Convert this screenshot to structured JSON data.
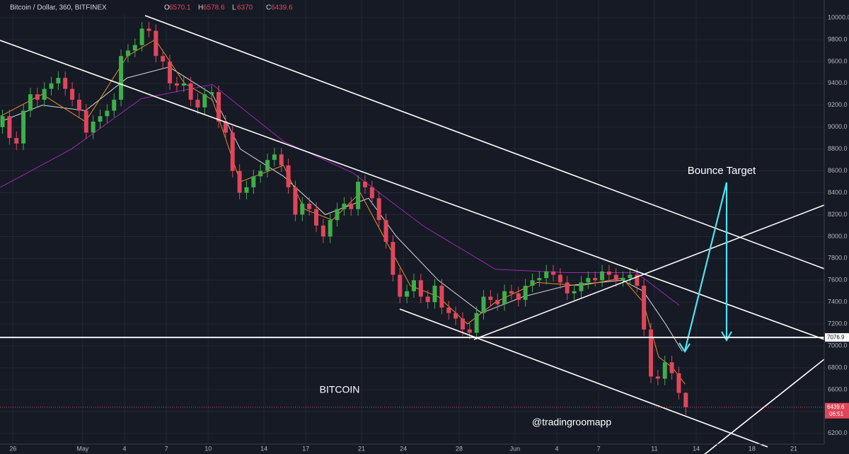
{
  "chart_data": {
    "type": "candlestick",
    "title": "Bitcoin / Dollar, 360, BITFINEX",
    "ohlc_legend": [
      {
        "label": "O",
        "value": 6570.1
      },
      {
        "label": "H",
        "value": 6578.6
      },
      {
        "label": "L",
        "value": 6370.0
      },
      {
        "label": "C",
        "value": 6439.6
      }
    ],
    "up_color": "#3fae4a",
    "down_color": "#e0465a",
    "x": [
      -0.75,
      -0.25,
      0.25,
      0.75,
      1.25,
      1.75,
      2.25,
      2.75,
      3.25,
      3.75,
      4.25,
      4.75,
      5.25,
      5.75,
      6.25,
      6.75,
      7.25,
      7.75,
      8.25,
      8.75,
      9.25,
      9.75,
      10.25,
      10.75,
      11.25,
      11.75,
      12.25,
      12.75,
      13.25,
      13.75,
      14.25,
      14.75,
      15.25,
      15.75,
      16.25,
      16.75,
      17.25,
      17.75,
      18.25,
      18.75,
      19.25,
      19.75,
      20.25,
      20.75,
      21.25,
      21.75,
      22.25,
      22.75,
      23.25,
      23.75,
      24.25,
      24.75,
      25.25,
      25.75,
      26.25,
      26.75,
      27.25,
      27.75,
      28.25,
      28.75,
      29.25,
      29.75,
      30.25,
      30.75,
      31.25,
      31.75,
      32.25,
      32.75,
      33.25,
      33.75,
      34.25,
      34.75,
      35.25,
      35.75,
      36.25,
      36.75,
      37.25,
      37.75,
      38.25,
      38.75,
      39.25,
      39.75,
      40.25,
      40.75,
      41.25,
      41.75,
      42.25,
      42.75,
      43.25,
      43.75,
      44.25,
      44.75,
      45.25,
      45.75,
      46.25,
      46.75,
      47.25,
      47.75,
      48.25
    ],
    "open": [
      9000,
      9100,
      8900,
      8850,
      9150,
      9300,
      9250,
      9350,
      9400,
      9450,
      9350,
      9250,
      9150,
      8950,
      9050,
      9100,
      9150,
      9250,
      9650,
      9700,
      9750,
      9900,
      9880,
      9650,
      9600,
      9400,
      9380,
      9400,
      9250,
      9180,
      9300,
      9320,
      9050,
      8950,
      8600,
      8400,
      8450,
      8550,
      8600,
      8700,
      8750,
      8650,
      8450,
      8200,
      8300,
      8250,
      8100,
      8000,
      8150,
      8250,
      8300,
      8250,
      8500,
      8450,
      8350,
      8150,
      7950,
      7650,
      7450,
      7500,
      7600,
      7450,
      7400,
      7550,
      7350,
      7300,
      7250,
      7150,
      7120,
      7300,
      7450,
      7420,
      7380,
      7500,
      7480,
      7420,
      7550,
      7600,
      7620,
      7680,
      7650,
      7580,
      7480,
      7500,
      7580,
      7620,
      7600,
      7680,
      7650,
      7600,
      7620,
      7650,
      7550,
      7150,
      6720,
      6700,
      6850,
      6750,
      6570.1
    ],
    "high": [
      9160,
      9160,
      8960,
      9210,
      9360,
      9360,
      9410,
      9460,
      9510,
      9510,
      9410,
      9310,
      9210,
      9110,
      9160,
      9210,
      9310,
      9710,
      9760,
      9810,
      9960,
      9960,
      9940,
      9710,
      9660,
      9460,
      9460,
      9460,
      9310,
      9360,
      9380,
      9380,
      9110,
      9010,
      8660,
      8510,
      8610,
      8660,
      8760,
      8810,
      8810,
      8710,
      8510,
      8360,
      8360,
      8310,
      8160,
      8210,
      8310,
      8360,
      8360,
      8560,
      8560,
      8510,
      8410,
      8210,
      8010,
      7710,
      7560,
      7660,
      7660,
      7510,
      7610,
      7610,
      7410,
      7360,
      7310,
      7210,
      7360,
      7510,
      7510,
      7480,
      7560,
      7560,
      7540,
      7610,
      7660,
      7680,
      7740,
      7740,
      7710,
      7640,
      7560,
      7640,
      7680,
      7680,
      7740,
      7740,
      7710,
      7680,
      7710,
      7710,
      7610,
      7210,
      6780,
      6910,
      6910,
      6810,
      6578.6
    ],
    "low": [
      8940,
      8840,
      8790,
      8790,
      9090,
      9190,
      9190,
      9290,
      9340,
      9290,
      9190,
      9090,
      8890,
      8890,
      8990,
      9040,
      9090,
      9190,
      9590,
      9640,
      9690,
      9820,
      9590,
      9540,
      9340,
      9320,
      9320,
      9190,
      9120,
      9120,
      9240,
      8990,
      8890,
      8540,
      8340,
      8340,
      8390,
      8490,
      8540,
      8640,
      8590,
      8390,
      8140,
      8140,
      8190,
      8040,
      7940,
      7940,
      8090,
      8190,
      8190,
      8190,
      8390,
      8290,
      8090,
      7890,
      7590,
      7390,
      7390,
      7440,
      7390,
      7340,
      7340,
      7290,
      7240,
      7190,
      7090,
      7060,
      7060,
      7240,
      7360,
      7320,
      7320,
      7420,
      7360,
      7360,
      7490,
      7540,
      7560,
      7590,
      7520,
      7420,
      7420,
      7440,
      7520,
      7540,
      7540,
      7590,
      7540,
      7540,
      7560,
      7490,
      7090,
      6660,
      6640,
      6640,
      6690,
      6510,
      6370
    ],
    "close": [
      9100,
      8900,
      8850,
      9150,
      9300,
      9250,
      9350,
      9400,
      9450,
      9350,
      9250,
      9150,
      8950,
      9050,
      9100,
      9150,
      9250,
      9650,
      9700,
      9750,
      9900,
      9880,
      9650,
      9600,
      9400,
      9380,
      9400,
      9250,
      9180,
      9300,
      9320,
      9050,
      8950,
      8600,
      8400,
      8450,
      8550,
      8600,
      8700,
      8750,
      8650,
      8450,
      8200,
      8300,
      8250,
      8100,
      8000,
      8150,
      8250,
      8300,
      8250,
      8500,
      8450,
      8350,
      8150,
      7950,
      7650,
      7450,
      7500,
      7600,
      7450,
      7400,
      7550,
      7350,
      7300,
      7250,
      7150,
      7120,
      7300,
      7450,
      7420,
      7380,
      7500,
      7480,
      7420,
      7550,
      7600,
      7620,
      7680,
      7650,
      7580,
      7480,
      7500,
      7580,
      7620,
      7600,
      7680,
      7650,
      7600,
      7620,
      7650,
      7550,
      7150,
      6720,
      6700,
      6850,
      6750,
      6570.1,
      6439.6
    ],
    "indicators": [
      {
        "color": "#9c27b0",
        "x": [
          -0.9,
          4.2,
          9.2,
          14.3,
          19.4,
          24.4,
          29.5,
          34.6,
          39.7,
          44.7,
          47.8
        ],
        "values": [
          8450,
          8800,
          9260,
          9390,
          8870,
          8580,
          8090,
          7700,
          7670,
          7670,
          7370
        ]
      },
      {
        "color": "#d8d8d8",
        "x": [
          -0.9,
          2.1,
          5.2,
          8.2,
          11.2,
          14.3,
          16.3,
          19.4,
          22.4,
          25.5,
          27.5,
          30.5,
          33.6,
          36.6,
          39.7,
          43.7,
          45.2,
          46.8,
          48.0
        ],
        "values": [
          9050,
          9200,
          9150,
          9450,
          9550,
          9300,
          8800,
          8550,
          8200,
          8350,
          8000,
          7600,
          7300,
          7450,
          7550,
          7600,
          7500,
          7200,
          6950
        ]
      },
      {
        "color": "#e8902a",
        "x": [
          -0.9,
          2.1,
          5.2,
          8.2,
          10.2,
          12.3,
          14.3,
          16.3,
          19.4,
          20.9,
          22.9,
          24.9,
          27.0,
          28.5,
          30.5,
          32.6,
          34.6,
          37.6,
          40.7,
          43.7,
          45.2,
          46.3,
          47.3,
          48.2
        ],
        "values": [
          9100,
          9300,
          9050,
          9650,
          9800,
          9400,
          9250,
          8500,
          8650,
          8250,
          8150,
          8400,
          7900,
          7550,
          7450,
          7200,
          7400,
          7580,
          7550,
          7620,
          7400,
          6900,
          6800,
          6650
        ]
      }
    ],
    "horizontal_line": 7076.9,
    "last_price": 6439.6,
    "countdown": "06:51",
    "annotations": {
      "bounce": "Bounce Target",
      "asset": "BITCOIN",
      "handle": "@tradingroomapp"
    },
    "xlim": [
      -0.93,
      58.18
    ],
    "ylim": [
      6089,
      10162
    ],
    "grid": true,
    "yticks": [
      {
        "value": 6200,
        "label": "6200.0"
      },
      {
        "value": 6400,
        "label": "6400.0"
      },
      {
        "value": 6600,
        "label": "6600.0"
      },
      {
        "value": 6800,
        "label": "6800.0"
      },
      {
        "value": 7000,
        "label": "7000.0"
      },
      {
        "value": 7200,
        "label": "7200.0"
      },
      {
        "value": 7400,
        "label": "7400.0"
      },
      {
        "value": 7600,
        "label": "7600.0"
      },
      {
        "value": 7800,
        "label": "7800.0"
      },
      {
        "value": 8000,
        "label": "8000.0"
      },
      {
        "value": 8200,
        "label": "8200.0"
      },
      {
        "value": 8400,
        "label": "8400.0"
      },
      {
        "value": 8600,
        "label": "8600.0"
      },
      {
        "value": 8800,
        "label": "8800.0"
      },
      {
        "value": 9000,
        "label": "9000.0"
      },
      {
        "value": 9200,
        "label": "9200.0"
      },
      {
        "value": 9400,
        "label": "9400.0"
      },
      {
        "value": 9600,
        "label": "9600.0"
      },
      {
        "value": 9800,
        "label": "9800.0"
      },
      {
        "value": 10000,
        "label": "10000.0"
      }
    ],
    "xticks": [
      {
        "value": 0,
        "label": "26"
      },
      {
        "value": 5,
        "label": "May"
      },
      {
        "value": 8,
        "label": "4"
      },
      {
        "value": 11,
        "label": "7"
      },
      {
        "value": 14,
        "label": "10"
      },
      {
        "value": 18,
        "label": "14"
      },
      {
        "value": 21,
        "label": "17"
      },
      {
        "value": 25,
        "label": "21"
      },
      {
        "value": 28,
        "label": "24"
      },
      {
        "value": 32,
        "label": "28"
      },
      {
        "value": 36,
        "label": "Jun"
      },
      {
        "value": 39,
        "label": "4"
      },
      {
        "value": 42,
        "label": "7"
      },
      {
        "value": 46,
        "label": "11"
      },
      {
        "value": 49,
        "label": "14"
      },
      {
        "value": 53,
        "label": "18"
      },
      {
        "value": 56,
        "label": "21"
      }
    ]
  }
}
